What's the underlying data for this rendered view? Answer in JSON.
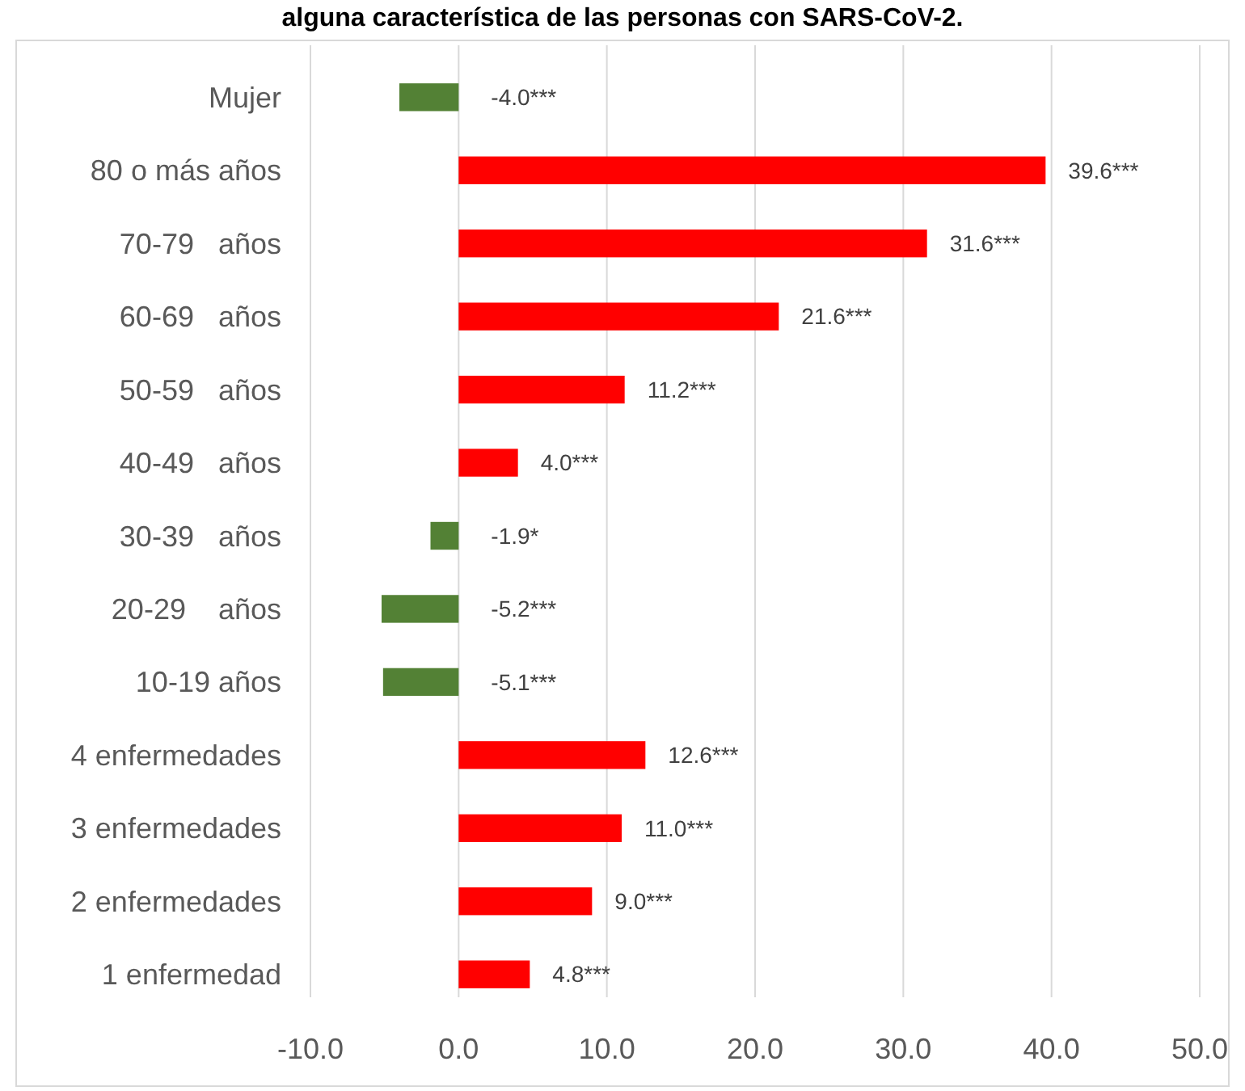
{
  "chart_data": {
    "type": "bar",
    "orientation": "horizontal",
    "title": "alguna característica de las personas con SARS-CoV-2.",
    "categories": [
      "Mujer",
      "80 o más años",
      "70-79   años",
      "60-69   años",
      "50-59   años",
      "40-49   años",
      "30-39   años",
      "20-29    años",
      "10-19 años",
      "4 enfermedades",
      "3 enfermedades",
      "2 enfermedades",
      "1 enfermedad"
    ],
    "values": [
      -4.0,
      39.6,
      31.6,
      21.6,
      11.2,
      4.0,
      -1.9,
      -5.2,
      -5.1,
      12.6,
      11.0,
      9.0,
      4.8
    ],
    "colors": [
      "#538135",
      "#ff0000",
      "#ff0000",
      "#ff0000",
      "#ff0000",
      "#ff0000",
      "#538135",
      "#538135",
      "#538135",
      "#ff0000",
      "#ff0000",
      "#ff0000",
      "#ff0000"
    ],
    "value_labels": [
      "-4.0***",
      "39.6***",
      "31.6***",
      "21.6***",
      "11.2***",
      "4.0***",
      "-1.9*",
      "-5.2***",
      "-5.1***",
      "12.6***",
      "11.0***",
      "9.0***",
      "4.8***"
    ],
    "xlim": [
      -10,
      50
    ],
    "xticks": [
      {
        "value": -10,
        "label": "-10.0"
      },
      {
        "value": 0,
        "label": "0.0"
      },
      {
        "value": 10,
        "label": "10.0"
      },
      {
        "value": 20,
        "label": "20.0"
      },
      {
        "value": 30,
        "label": "30.0"
      },
      {
        "value": 40,
        "label": "40.0"
      },
      {
        "value": 50,
        "label": "50.0"
      }
    ],
    "grid": "x"
  }
}
